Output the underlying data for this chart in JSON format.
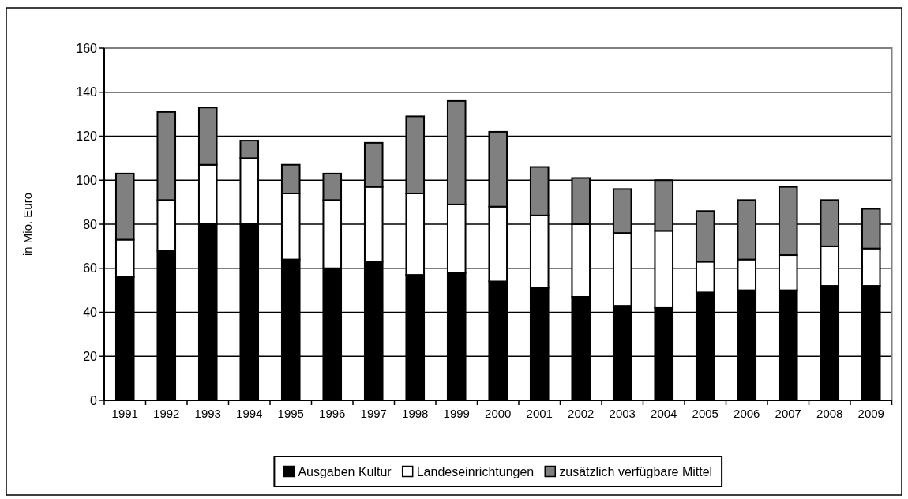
{
  "chart_data": {
    "type": "bar",
    "stacked": true,
    "ylabel": "in Mio. Euro",
    "categories": [
      "1991",
      "1992",
      "1993",
      "1994",
      "1995",
      "1996",
      "1997",
      "1998",
      "1999",
      "2000",
      "2001",
      "2002",
      "2003",
      "2004",
      "2005",
      "2006",
      "2007",
      "2008",
      "2009"
    ],
    "series": [
      {
        "name": "Ausgaben Kultur",
        "color": "#000000",
        "values": [
          56,
          68,
          80,
          80,
          64,
          60,
          63,
          57,
          58,
          54,
          51,
          47,
          43,
          42,
          49,
          50,
          50,
          52,
          52
        ]
      },
      {
        "name": "Landeseinrichtungen",
        "color": "#ffffff",
        "values": [
          17,
          23,
          27,
          30,
          30,
          31,
          34,
          37,
          31,
          34,
          33,
          33,
          33,
          35,
          14,
          14,
          16,
          18,
          17
        ]
      },
      {
        "name": "zusätzlich verfügbare Mittel",
        "color": "#808080",
        "values": [
          30,
          40,
          26,
          8,
          13,
          12,
          20,
          35,
          47,
          34,
          22,
          21,
          20,
          23,
          23,
          27,
          31,
          21,
          18
        ]
      }
    ],
    "ylim": [
      0,
      160
    ],
    "yticks": [
      0,
      20,
      40,
      60,
      80,
      100,
      120,
      140,
      160
    ],
    "grid": "y",
    "legend": "bottom"
  }
}
